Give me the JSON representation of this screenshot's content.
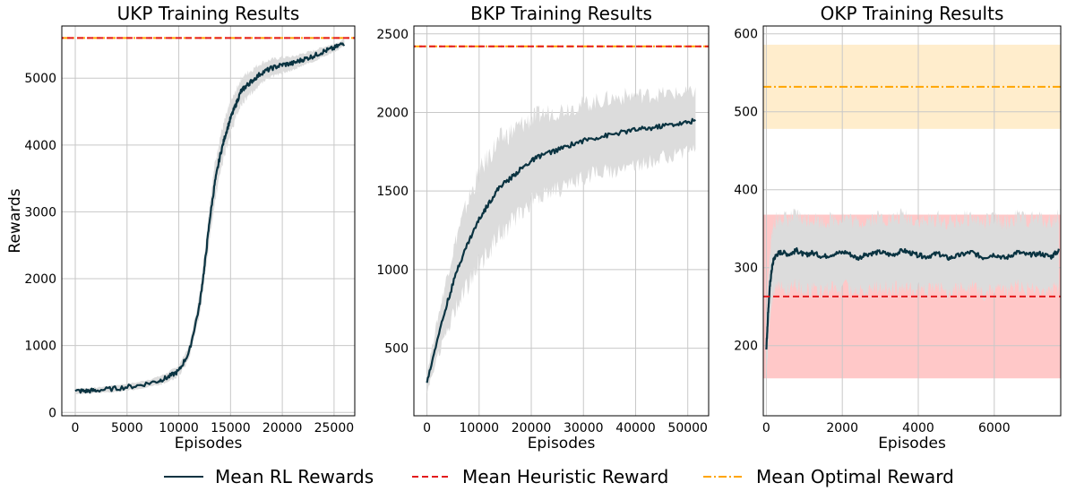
{
  "colors": {
    "rl": "#0a3341",
    "band": "#dcdcdc",
    "heuristic": "#e31a1c",
    "optimal": "#ffa500",
    "heuristic_band": "#ffc8c8",
    "optimal_band": "#ffedcc",
    "grid": "#c8c8c8"
  },
  "legend": {
    "rl": "Mean RL Rewards",
    "heuristic": "Mean Heuristic Reward",
    "optimal": "Mean Optimal Reward"
  },
  "chart_data": [
    {
      "type": "line",
      "title": "UKP Training Results",
      "xlabel": "Episodes",
      "ylabel": "Rewards",
      "xlim": [
        -1300,
        27000
      ],
      "ylim": [
        -50,
        5780
      ],
      "xticks": [
        0,
        5000,
        10000,
        15000,
        20000,
        25000
      ],
      "yticks": [
        0,
        1000,
        2000,
        3000,
        4000,
        5000
      ],
      "optimal": 5600,
      "heuristic": 5600,
      "series": [
        {
          "name": "Mean RL Rewards",
          "x": [
            0,
            1000,
            2000,
            4000,
            6000,
            8000,
            9000,
            10000,
            11000,
            12000,
            12500,
            13000,
            13500,
            14000,
            14500,
            15000,
            15500,
            16000,
            16500,
            17000,
            18000,
            19000,
            20000,
            21000,
            22000,
            23000,
            24000,
            25000,
            26000
          ],
          "y": [
            320,
            320,
            330,
            360,
            400,
            470,
            530,
            620,
            900,
            1600,
            2200,
            2900,
            3450,
            3850,
            4150,
            4400,
            4600,
            4800,
            4880,
            4950,
            5080,
            5150,
            5200,
            5220,
            5280,
            5330,
            5400,
            5450,
            5530
          ],
          "band": [
            40,
            40,
            40,
            50,
            50,
            60,
            70,
            80,
            100,
            150,
            200,
            250,
            280,
            280,
            250,
            230,
            200,
            190,
            180,
            170,
            150,
            130,
            110,
            100,
            90,
            80,
            70,
            60,
            50
          ]
        }
      ]
    },
    {
      "type": "line",
      "title": "BKP Training Results",
      "xlabel": "Episodes",
      "xlim": [
        -2500,
        54000
      ],
      "ylim": [
        70,
        2550
      ],
      "xticks": [
        0,
        10000,
        20000,
        30000,
        40000,
        50000
      ],
      "yticks": [
        500,
        1000,
        1500,
        2000,
        2500
      ],
      "optimal": 2420,
      "heuristic": 2420,
      "series": [
        {
          "name": "Mean RL Rewards",
          "x": [
            0,
            2000,
            4000,
            6000,
            8000,
            10000,
            12000,
            14000,
            16000,
            18000,
            20000,
            22000,
            25000,
            28000,
            31000,
            34000,
            37000,
            40000,
            43000,
            46000,
            49000,
            51500
          ],
          "y": [
            280,
            560,
            800,
            1020,
            1180,
            1320,
            1430,
            1530,
            1580,
            1640,
            1690,
            1730,
            1760,
            1800,
            1830,
            1850,
            1870,
            1890,
            1900,
            1920,
            1930,
            1950
          ],
          "band": [
            60,
            120,
            180,
            230,
            270,
            290,
            300,
            300,
            290,
            280,
            270,
            260,
            250,
            240,
            230,
            230,
            230,
            220,
            210,
            200,
            190,
            180
          ]
        }
      ]
    },
    {
      "type": "line",
      "title": "OKP Training Results",
      "xlabel": "Episodes",
      "xlim": [
        -80,
        7750
      ],
      "ylim": [
        110,
        610
      ],
      "xticks": [
        0,
        2000,
        4000,
        6000
      ],
      "yticks": [
        200,
        300,
        400,
        500,
        600
      ],
      "optimal": 532,
      "optimal_band": [
        478,
        586
      ],
      "heuristic": 263,
      "heuristic_band": [
        158,
        368
      ],
      "series": [
        {
          "name": "Mean RL Rewards",
          "x": [
            0,
            50,
            100,
            150,
            200,
            300,
            400,
            600,
            800,
            1000,
            1200,
            1500,
            1800,
            2100,
            2400,
            2700,
            3000,
            3300,
            3600,
            3900,
            4200,
            4500,
            4800,
            5100,
            5400,
            5700,
            6000,
            6300,
            6600,
            6900,
            7200,
            7500,
            7700
          ],
          "y": [
            195,
            245,
            280,
            300,
            312,
            318,
            320,
            317,
            322,
            316,
            319,
            314,
            318,
            320,
            312,
            318,
            320,
            316,
            322,
            317,
            314,
            318,
            312,
            316,
            320,
            313,
            317,
            312,
            320,
            316,
            318,
            314,
            322
          ],
          "band": [
            35,
            40,
            40,
            42,
            45,
            45,
            45,
            45,
            45,
            45,
            45,
            45,
            45,
            45,
            45,
            45,
            45,
            45,
            45,
            45,
            45,
            45,
            45,
            45,
            45,
            45,
            45,
            45,
            45,
            45,
            45,
            45,
            45
          ]
        }
      ]
    }
  ]
}
